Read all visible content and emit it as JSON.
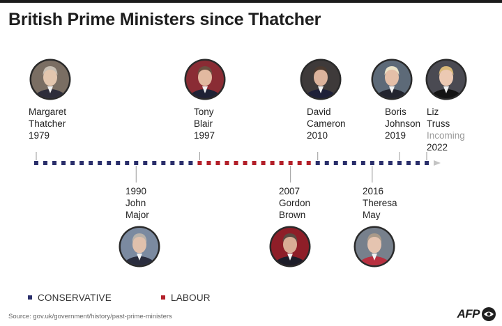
{
  "title": "British Prime Ministers since Thatcher",
  "colors": {
    "conservative": "#2b2f6b",
    "labour": "#b3202a",
    "axis": "#9a9a9a"
  },
  "timeline": {
    "start": 1979,
    "end": 2023
  },
  "prime_ministers": [
    {
      "id": "thatcher",
      "first": "Margaret",
      "last": "Thatcher",
      "year": "1979",
      "extra": "",
      "party": "conservative",
      "side": "above"
    },
    {
      "id": "major",
      "first": "John",
      "last": "Major",
      "year": "1990",
      "extra": "",
      "party": "conservative",
      "side": "below"
    },
    {
      "id": "blair",
      "first": "Tony",
      "last": "Blair",
      "year": "1997",
      "extra": "",
      "party": "labour",
      "side": "above"
    },
    {
      "id": "brown",
      "first": "Gordon",
      "last": "Brown",
      "year": "2007",
      "extra": "",
      "party": "labour",
      "side": "below"
    },
    {
      "id": "cameron",
      "first": "David",
      "last": "Cameron",
      "year": "2010",
      "extra": "",
      "party": "conservative",
      "side": "above"
    },
    {
      "id": "may",
      "first": "Theresa",
      "last": "May",
      "year": "2016",
      "extra": "",
      "party": "conservative",
      "side": "below"
    },
    {
      "id": "johnson",
      "first": "Boris",
      "last": "Johnson",
      "year": "2019",
      "extra": "",
      "party": "conservative",
      "side": "above"
    },
    {
      "id": "truss",
      "first": "Liz",
      "last": "Truss",
      "year": "2022",
      "extra": "Incoming",
      "party": "conservative",
      "side": "above"
    }
  ],
  "legend": {
    "conservative": "CONSERVATIVE",
    "labour": "LABOUR"
  },
  "source": "Source: gov.uk/government/history/past-prime-ministers",
  "credit": "AFP"
}
